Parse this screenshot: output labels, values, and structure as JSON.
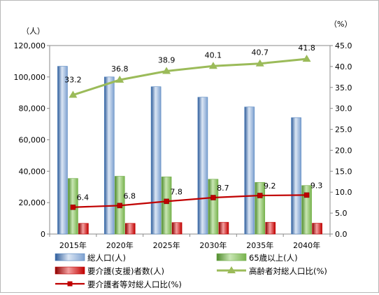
{
  "chart_data": {
    "type": "bar",
    "categories": [
      "2015年",
      "2020年",
      "2025年",
      "2030年",
      "2035年",
      "2040年"
    ],
    "left_axis": {
      "unit_label": "（人）",
      "ylim": [
        0,
        120000
      ],
      "ticks": [
        "0",
        "20,000",
        "40,000",
        "60,000",
        "80,000",
        "100,000",
        "120,000"
      ]
    },
    "right_axis": {
      "unit_label": "（%）",
      "ylim": [
        0,
        45
      ],
      "ticks": [
        "0.0",
        "5.0",
        "10.0",
        "15.0",
        "20.0",
        "25.0",
        "30.0",
        "35.0",
        "40.0",
        "45.0"
      ]
    },
    "series": [
      {
        "name": "総人口(人)",
        "kind": "bar",
        "axis": "left",
        "color": "#4f81bd",
        "values": [
          106800,
          100000,
          93800,
          87100,
          80900,
          74100
        ]
      },
      {
        "name": "65歳以上(人)",
        "kind": "bar",
        "axis": "left",
        "color": "#70ad47",
        "values": [
          35400,
          36800,
          36400,
          34900,
          32900,
          30900
        ]
      },
      {
        "name": "要介護(支援)者数(人)",
        "kind": "bar",
        "axis": "left",
        "color": "#c00000",
        "values": [
          6800,
          6800,
          7300,
          7500,
          7500,
          6900
        ]
      },
      {
        "name": "高齢者対総人口比(%)",
        "kind": "line",
        "axis": "right",
        "color": "#9bbb59",
        "marker": "triangle",
        "values": [
          33.2,
          36.8,
          38.9,
          40.1,
          40.7,
          41.8
        ],
        "labels": [
          "33.2",
          "36.8",
          "38.9",
          "40.1",
          "40.7",
          "41.8"
        ]
      },
      {
        "name": "要介護者等対総人口比(%)",
        "kind": "line",
        "axis": "right",
        "color": "#c00000",
        "marker": "square",
        "values": [
          6.4,
          6.8,
          7.8,
          8.7,
          9.2,
          9.3
        ],
        "labels": [
          "6.4",
          "6.8",
          "7.8",
          "8.7",
          "9.2",
          "9.3"
        ]
      }
    ],
    "grid": false,
    "legend_position": "bottom"
  }
}
